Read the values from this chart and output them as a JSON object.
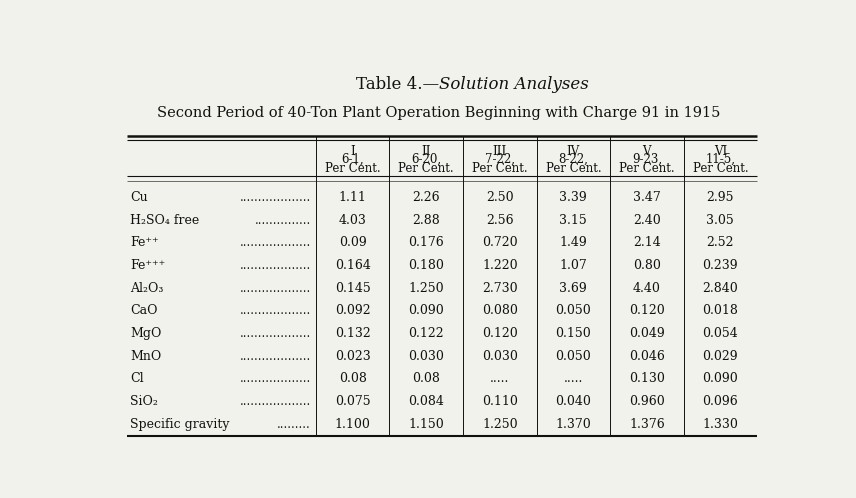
{
  "title_normal": "Table 4.—",
  "title_italic": "Solution Analyses",
  "subtitle": "Second Period of 40-Ton Plant Operation Beginning with Charge 91 in 1915",
  "col_headers": [
    [
      "I",
      "6-1,",
      "Per Cent."
    ],
    [
      "II",
      "6-20,",
      "Per Cent."
    ],
    [
      "III",
      "7-22,",
      "Per Cent."
    ],
    [
      "IV",
      "8-22,",
      "Per Cent."
    ],
    [
      "V",
      "9-23,",
      "Per Cent."
    ],
    [
      "VI",
      "11-5,",
      "Per Cent."
    ]
  ],
  "row_labels": [
    "Cu",
    "H₂SO₄ free",
    "Fe⁺⁺",
    "Fe⁺⁺⁺",
    "Al₂O₃",
    "CaO",
    "MgO",
    "MnO",
    "Cl",
    "SiO₂",
    "Specific gravity"
  ],
  "row_dots": [
    "...................",
    "...............",
    "...................",
    "...................",
    "...................",
    "...................",
    "...................",
    "...................",
    "...................",
    "...................",
    "........."
  ],
  "data": [
    [
      "1.11",
      "2.26",
      "2.50",
      "3.39",
      "3.47",
      "2.95"
    ],
    [
      "4.03",
      "2.88",
      "2.56",
      "3.15",
      "2.40",
      "3.05"
    ],
    [
      "0.09",
      "0.176",
      "0.720",
      "1.49",
      "2.14",
      "2.52"
    ],
    [
      "0.164",
      "0.180",
      "1.220",
      "1.07",
      "0.80",
      "0.239"
    ],
    [
      "0.145",
      "1.250",
      "2.730",
      "3.69",
      "4.40",
      "2.840"
    ],
    [
      "0.092",
      "0.090",
      "0.080",
      "0.050",
      "0.120",
      "0.018"
    ],
    [
      "0.132",
      "0.122",
      "0.120",
      "0.150",
      "0.049",
      "0.054"
    ],
    [
      "0.023",
      "0.030",
      "0.030",
      "0.050",
      "0.046",
      "0.029"
    ],
    [
      "0.08",
      "0.08",
      ".....",
      ".....",
      "0.130",
      "0.090"
    ],
    [
      "0.075",
      "0.084",
      "0.110",
      "0.040",
      "0.960",
      "0.096"
    ],
    [
      "1.100",
      "1.150",
      "1.250",
      "1.370",
      "1.376",
      "1.330"
    ]
  ],
  "bg_color": "#f2f2ec",
  "text_color": "#111111",
  "title_fontsize": 12,
  "subtitle_fontsize": 10.5,
  "header_fontsize": 8.5,
  "data_fontsize": 9,
  "label_fontsize": 9
}
